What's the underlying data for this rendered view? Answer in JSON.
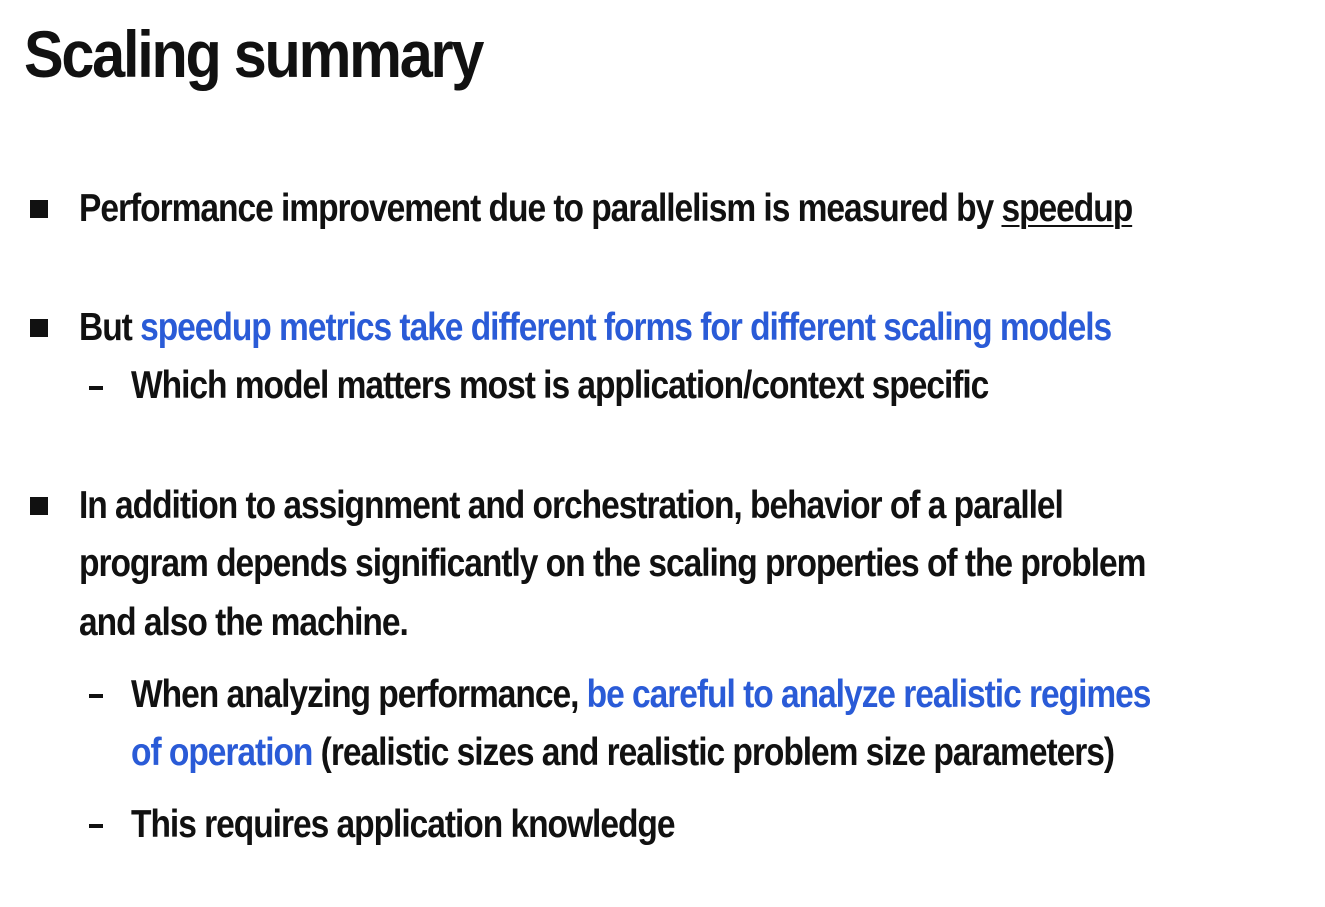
{
  "title": "Scaling summary",
  "bullets": [
    {
      "lead": "Performance improvement due to parallelism is measured by ",
      "underlined": "speedup"
    },
    {
      "lead": "But ",
      "highlight": "speedup metrics take different forms for different scaling models",
      "sub": "Which model matters most is application/context specific"
    },
    {
      "line1": "In addition to assignment and orchestration, behavior of a parallel",
      "line2": "program depends significantly on the scaling properties of the problem",
      "line3": "and also the machine.",
      "subs": [
        {
          "lead": "When analyzing performance, ",
          "highlight1": "be careful to analyze realistic regimes",
          "highlight2": "of operation",
          "tail": " (realistic sizes and realistic problem size parameters)"
        },
        {
          "text": "This requires application knowledge"
        }
      ]
    }
  ],
  "colors": {
    "text": "#111111",
    "highlight": "#2a5bd7",
    "background": "#ffffff"
  },
  "icons": {
    "bullet": "square-bullet-icon",
    "sub_bullet": "dash-bullet-icon"
  }
}
